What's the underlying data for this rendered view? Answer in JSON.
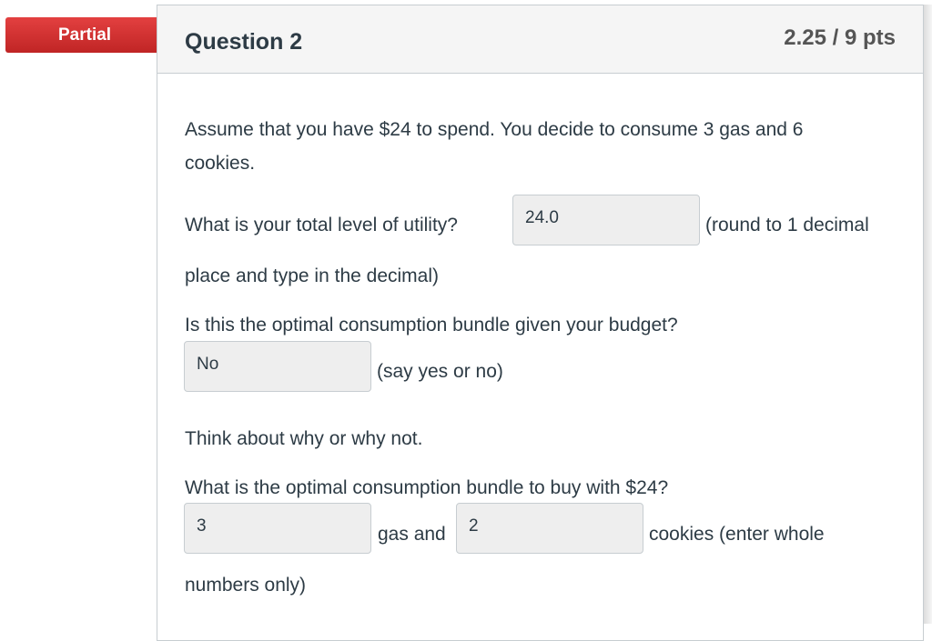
{
  "badge": "Partial",
  "question": {
    "title": "Question 2",
    "points": "2.25 / 9 pts"
  },
  "body": {
    "intro_1": "Assume that you have $24 to spend.  You decide to consume 3 gas and 6",
    "intro_2": "cookies.",
    "q1_label": "What is your total level of utility?",
    "q1_value": "24.0",
    "q1_after": "(round to 1 decimal",
    "q1_after_2": "place and type in the decimal)",
    "q2_label": "Is this the optimal consumption bundle given your budget?",
    "q2_value": "No",
    "q2_after": "(say yes or no)",
    "think": "Think about why or why not.",
    "q3_label": "What is the optimal consumption bundle to buy with $24?",
    "q3_gas_value": "3",
    "q3_mid": "gas and",
    "q3_cookies_value": "2",
    "q3_after": "cookies (enter whole",
    "q3_after_2": "numbers only)"
  }
}
